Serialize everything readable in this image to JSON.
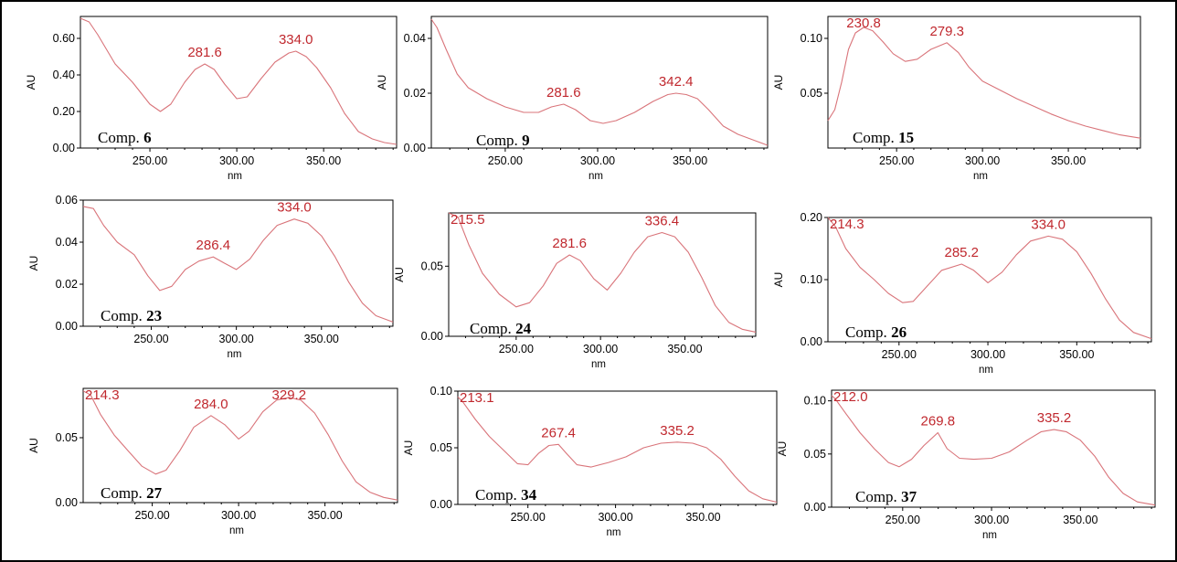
{
  "style": {
    "line_color": "#d9747a",
    "peak_label_color": "#c0282e",
    "frame_color": "#000000"
  },
  "chart_data": [
    {
      "type": "line",
      "compound_prefix": "Comp.",
      "compound_number": "6",
      "xlabel": "nm",
      "ylabel": "AU",
      "xlim": [
        210,
        392
      ],
      "ylim": [
        0,
        0.72
      ],
      "xticks": [
        250,
        300,
        350
      ],
      "xtick_labels": [
        "250.00",
        "300.00",
        "350.00"
      ],
      "yticks": [
        0,
        0.2,
        0.4,
        0.6
      ],
      "ytick_labels": [
        "0.00",
        "0.20",
        "0.40",
        "0.60"
      ],
      "peaks": [
        {
          "label": "281.6",
          "x": 281.6
        },
        {
          "label": "334.0",
          "x": 334.0
        }
      ],
      "x": [
        210,
        215,
        220,
        230,
        240,
        250,
        256,
        262,
        270,
        276,
        281.6,
        287,
        293,
        300,
        306,
        314,
        322,
        330,
        334,
        340,
        346,
        354,
        362,
        370,
        378,
        385,
        392
      ],
      "y": [
        0.71,
        0.69,
        0.62,
        0.46,
        0.36,
        0.24,
        0.2,
        0.24,
        0.36,
        0.43,
        0.46,
        0.43,
        0.35,
        0.27,
        0.28,
        0.38,
        0.47,
        0.52,
        0.53,
        0.5,
        0.44,
        0.33,
        0.19,
        0.09,
        0.05,
        0.03,
        0.02
      ]
    },
    {
      "type": "line",
      "compound_prefix": "Comp.",
      "compound_number": "9",
      "xlabel": "nm",
      "ylabel": "AU",
      "xlim": [
        210,
        392
      ],
      "ylim": [
        0,
        0.048
      ],
      "xticks": [
        250,
        300,
        350
      ],
      "xtick_labels": [
        "250.00",
        "300.00",
        "350.00"
      ],
      "yticks": [
        0,
        0.02,
        0.04
      ],
      "ytick_labels": [
        "0.00",
        "0.02",
        "0.04"
      ],
      "peaks": [
        {
          "label": "281.6",
          "x": 281.6
        },
        {
          "label": "342.4",
          "x": 342.4
        }
      ],
      "x": [
        210,
        213,
        218,
        224,
        230,
        240,
        250,
        260,
        268,
        275,
        281.6,
        288,
        296,
        303,
        310,
        320,
        330,
        338,
        342.4,
        348,
        354,
        360,
        368,
        376,
        384,
        392
      ],
      "y": [
        0.047,
        0.044,
        0.036,
        0.027,
        0.022,
        0.018,
        0.015,
        0.013,
        0.013,
        0.015,
        0.016,
        0.014,
        0.01,
        0.009,
        0.01,
        0.013,
        0.017,
        0.0195,
        0.02,
        0.0195,
        0.018,
        0.014,
        0.008,
        0.005,
        0.003,
        0.001
      ]
    },
    {
      "type": "line",
      "compound_prefix": "Comp.",
      "compound_number": "15",
      "xlabel": "nm",
      "ylabel": "AU",
      "xlim": [
        210,
        392
      ],
      "ylim": [
        0,
        0.12
      ],
      "xticks": [
        250,
        300,
        350
      ],
      "xtick_labels": [
        "250.00",
        "300.00",
        "350.00"
      ],
      "yticks": [
        0.05,
        0.1
      ],
      "ytick_labels": [
        "0.05",
        "0.10"
      ],
      "peaks": [
        {
          "label": "230.8",
          "x": 230.8
        },
        {
          "label": "279.3",
          "x": 279.3
        }
      ],
      "x": [
        210,
        214,
        218,
        222,
        226,
        230.8,
        236,
        242,
        248,
        255,
        262,
        270,
        279.3,
        286,
        292,
        300,
        310,
        320,
        330,
        340,
        350,
        360,
        370,
        380,
        392
      ],
      "y": [
        0.025,
        0.035,
        0.06,
        0.09,
        0.105,
        0.11,
        0.107,
        0.097,
        0.086,
        0.079,
        0.081,
        0.09,
        0.096,
        0.087,
        0.074,
        0.061,
        0.053,
        0.045,
        0.038,
        0.031,
        0.025,
        0.02,
        0.016,
        0.012,
        0.009
      ]
    },
    {
      "type": "line",
      "compound_prefix": "Comp.",
      "compound_number": "23",
      "xlabel": "nm",
      "ylabel": "AU",
      "xlim": [
        210,
        392
      ],
      "ylim": [
        0,
        0.06
      ],
      "xticks": [
        250,
        300,
        350
      ],
      "xtick_labels": [
        "250.00",
        "300.00",
        "350.00"
      ],
      "yticks": [
        0,
        0.02,
        0.04,
        0.06
      ],
      "ytick_labels": [
        "0.00",
        "0.02",
        "0.04",
        "0.06"
      ],
      "peaks": [
        {
          "label": "286.4",
          "x": 286.4
        },
        {
          "label": "334.0",
          "x": 334.0
        }
      ],
      "x": [
        210,
        216,
        222,
        230,
        240,
        248,
        255,
        262,
        270,
        278,
        286.4,
        293,
        300,
        308,
        316,
        324,
        334,
        342,
        350,
        358,
        366,
        374,
        382,
        392
      ],
      "y": [
        0.057,
        0.056,
        0.048,
        0.04,
        0.034,
        0.024,
        0.017,
        0.019,
        0.027,
        0.031,
        0.033,
        0.03,
        0.027,
        0.032,
        0.041,
        0.048,
        0.051,
        0.049,
        0.043,
        0.033,
        0.021,
        0.011,
        0.005,
        0.002
      ]
    },
    {
      "type": "line",
      "compound_prefix": "Comp.",
      "compound_number": "24",
      "xlabel": "nm",
      "ylabel": "AU",
      "xlim": [
        210,
        392
      ],
      "ylim": [
        0,
        0.088
      ],
      "xticks": [
        250,
        300,
        350
      ],
      "xtick_labels": [
        "250.00",
        "300.00",
        "350.00"
      ],
      "yticks": [
        0,
        0.05
      ],
      "ytick_labels": [
        "0.00",
        "0.05"
      ],
      "peaks": [
        {
          "label": "215.5",
          "x": 215.5
        },
        {
          "label": "281.6",
          "x": 281.6
        },
        {
          "label": "336.4",
          "x": 336.4
        }
      ],
      "x": [
        210,
        215.5,
        222,
        230,
        240,
        250,
        258,
        266,
        274,
        281.6,
        288,
        296,
        304,
        312,
        320,
        328,
        336.4,
        344,
        352,
        360,
        368,
        376,
        384,
        392
      ],
      "y": [
        0.088,
        0.085,
        0.065,
        0.045,
        0.03,
        0.021,
        0.024,
        0.036,
        0.052,
        0.058,
        0.054,
        0.041,
        0.033,
        0.045,
        0.06,
        0.071,
        0.074,
        0.071,
        0.06,
        0.042,
        0.022,
        0.01,
        0.005,
        0.003
      ]
    },
    {
      "type": "line",
      "compound_prefix": "Comp.",
      "compound_number": "26",
      "xlabel": "nm",
      "ylabel": "AU",
      "xlim": [
        210,
        392
      ],
      "ylim": [
        0,
        0.2
      ],
      "xticks": [
        250,
        300,
        350
      ],
      "xtick_labels": [
        "250.00",
        "300.00",
        "350.00"
      ],
      "yticks": [
        0,
        0.1,
        0.2
      ],
      "ytick_labels": [
        "0.00",
        "0.10",
        "0.20"
      ],
      "peaks": [
        {
          "label": "214.3",
          "x": 214.3
        },
        {
          "label": "285.2",
          "x": 285.2
        },
        {
          "label": "334.0",
          "x": 334.0
        }
      ],
      "x": [
        210,
        214.3,
        220,
        228,
        236,
        244,
        252,
        258,
        266,
        274,
        285.2,
        292,
        300,
        308,
        316,
        324,
        334,
        342,
        350,
        358,
        366,
        374,
        382,
        392
      ],
      "y": [
        0.2,
        0.185,
        0.15,
        0.12,
        0.1,
        0.078,
        0.063,
        0.065,
        0.09,
        0.115,
        0.125,
        0.115,
        0.095,
        0.112,
        0.14,
        0.162,
        0.17,
        0.165,
        0.145,
        0.11,
        0.07,
        0.035,
        0.015,
        0.005
      ]
    },
    {
      "type": "line",
      "compound_prefix": "Comp.",
      "compound_number": "27",
      "xlabel": "nm",
      "ylabel": "AU",
      "xlim": [
        210,
        392
      ],
      "ylim": [
        0,
        0.088
      ],
      "xticks": [
        250,
        300,
        350
      ],
      "xtick_labels": [
        "250.00",
        "300.00",
        "350.00"
      ],
      "yticks": [
        0,
        0.05
      ],
      "ytick_labels": [
        "0.00",
        "0.05"
      ],
      "peaks": [
        {
          "label": "214.3",
          "x": 214.3
        },
        {
          "label": "284.0",
          "x": 284.0
        },
        {
          "label": "329.2",
          "x": 329.2
        }
      ],
      "x": [
        210,
        214.3,
        220,
        228,
        236,
        244,
        252,
        258,
        266,
        274,
        284,
        292,
        300,
        306,
        314,
        322,
        329.2,
        336,
        344,
        352,
        360,
        368,
        376,
        384,
        392
      ],
      "y": [
        0.086,
        0.083,
        0.068,
        0.052,
        0.04,
        0.028,
        0.022,
        0.025,
        0.04,
        0.058,
        0.067,
        0.06,
        0.049,
        0.055,
        0.07,
        0.079,
        0.081,
        0.079,
        0.069,
        0.052,
        0.032,
        0.016,
        0.008,
        0.004,
        0.002
      ]
    },
    {
      "type": "line",
      "compound_prefix": "Comp.",
      "compound_number": "34",
      "xlabel": "nm",
      "ylabel": "AU",
      "xlim": [
        210,
        392
      ],
      "ylim": [
        0,
        0.1
      ],
      "xticks": [
        250,
        300,
        350
      ],
      "xtick_labels": [
        "250.00",
        "300.00",
        "350.00"
      ],
      "yticks": [
        0,
        0.05,
        0.1
      ],
      "ytick_labels": [
        "0.00",
        "0.05",
        "0.10"
      ],
      "peaks": [
        {
          "label": "213.1",
          "x": 213.1
        },
        {
          "label": "267.4",
          "x": 267.4
        },
        {
          "label": "335.2",
          "x": 335.2
        }
      ],
      "x": [
        210,
        213.1,
        220,
        228,
        236,
        244,
        250,
        256,
        262,
        267.4,
        272,
        278,
        286,
        296,
        306,
        316,
        326,
        335.2,
        344,
        352,
        360,
        368,
        376,
        384,
        392
      ],
      "y": [
        0.095,
        0.09,
        0.075,
        0.06,
        0.048,
        0.036,
        0.035,
        0.045,
        0.052,
        0.053,
        0.045,
        0.035,
        0.033,
        0.037,
        0.042,
        0.05,
        0.054,
        0.055,
        0.054,
        0.05,
        0.04,
        0.025,
        0.012,
        0.005,
        0.002
      ]
    },
    {
      "type": "line",
      "compound_prefix": "Comp.",
      "compound_number": "37",
      "xlabel": "nm",
      "ylabel": "AU",
      "xlim": [
        210,
        392
      ],
      "ylim": [
        0,
        0.11
      ],
      "xticks": [
        250,
        300,
        350
      ],
      "xtick_labels": [
        "250.00",
        "300.00",
        "350.00"
      ],
      "yticks": [
        0,
        0.05,
        0.1
      ],
      "ytick_labels": [
        "0.00",
        "0.05",
        "0.10"
      ],
      "peaks": [
        {
          "label": "212.0",
          "x": 212.0
        },
        {
          "label": "269.8",
          "x": 269.8
        },
        {
          "label": "335.2",
          "x": 335.2
        }
      ],
      "x": [
        210,
        212,
        218,
        226,
        234,
        242,
        248,
        255,
        262,
        269.8,
        275,
        282,
        290,
        300,
        310,
        320,
        328,
        335.2,
        342,
        350,
        358,
        366,
        374,
        382,
        392
      ],
      "y": [
        0.105,
        0.102,
        0.088,
        0.07,
        0.055,
        0.042,
        0.038,
        0.045,
        0.058,
        0.07,
        0.055,
        0.046,
        0.045,
        0.046,
        0.052,
        0.063,
        0.071,
        0.073,
        0.071,
        0.063,
        0.048,
        0.028,
        0.013,
        0.005,
        0.002
      ]
    }
  ]
}
